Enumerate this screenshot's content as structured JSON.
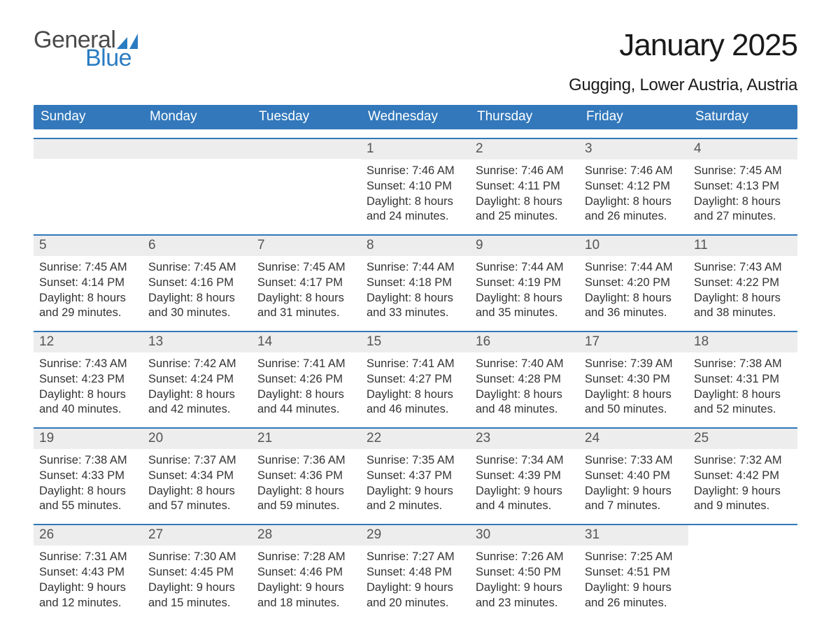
{
  "logo": {
    "general": "General",
    "blue": "Blue",
    "icon_color": "#2a7cc2"
  },
  "title": "January 2025",
  "subtitle": "Gugging, Lower Austria, Austria",
  "colors": {
    "header_bg": "#3278bb",
    "header_text": "#ffffff",
    "daynum_bg": "#ededed",
    "daynum_text": "#555555",
    "body_text": "#333333",
    "row_border": "#3278bb",
    "page_bg": "#ffffff"
  },
  "day_headers": [
    "Sunday",
    "Monday",
    "Tuesday",
    "Wednesday",
    "Thursday",
    "Friday",
    "Saturday"
  ],
  "weeks": [
    [
      {
        "blank": true
      },
      {
        "blank": true
      },
      {
        "blank": true
      },
      {
        "n": "1",
        "sr": "Sunrise: 7:46 AM",
        "ss": "Sunset: 4:10 PM",
        "d1": "Daylight: 8 hours",
        "d2": "and 24 minutes."
      },
      {
        "n": "2",
        "sr": "Sunrise: 7:46 AM",
        "ss": "Sunset: 4:11 PM",
        "d1": "Daylight: 8 hours",
        "d2": "and 25 minutes."
      },
      {
        "n": "3",
        "sr": "Sunrise: 7:46 AM",
        "ss": "Sunset: 4:12 PM",
        "d1": "Daylight: 8 hours",
        "d2": "and 26 minutes."
      },
      {
        "n": "4",
        "sr": "Sunrise: 7:45 AM",
        "ss": "Sunset: 4:13 PM",
        "d1": "Daylight: 8 hours",
        "d2": "and 27 minutes."
      }
    ],
    [
      {
        "n": "5",
        "sr": "Sunrise: 7:45 AM",
        "ss": "Sunset: 4:14 PM",
        "d1": "Daylight: 8 hours",
        "d2": "and 29 minutes."
      },
      {
        "n": "6",
        "sr": "Sunrise: 7:45 AM",
        "ss": "Sunset: 4:16 PM",
        "d1": "Daylight: 8 hours",
        "d2": "and 30 minutes."
      },
      {
        "n": "7",
        "sr": "Sunrise: 7:45 AM",
        "ss": "Sunset: 4:17 PM",
        "d1": "Daylight: 8 hours",
        "d2": "and 31 minutes."
      },
      {
        "n": "8",
        "sr": "Sunrise: 7:44 AM",
        "ss": "Sunset: 4:18 PM",
        "d1": "Daylight: 8 hours",
        "d2": "and 33 minutes."
      },
      {
        "n": "9",
        "sr": "Sunrise: 7:44 AM",
        "ss": "Sunset: 4:19 PM",
        "d1": "Daylight: 8 hours",
        "d2": "and 35 minutes."
      },
      {
        "n": "10",
        "sr": "Sunrise: 7:44 AM",
        "ss": "Sunset: 4:20 PM",
        "d1": "Daylight: 8 hours",
        "d2": "and 36 minutes."
      },
      {
        "n": "11",
        "sr": "Sunrise: 7:43 AM",
        "ss": "Sunset: 4:22 PM",
        "d1": "Daylight: 8 hours",
        "d2": "and 38 minutes."
      }
    ],
    [
      {
        "n": "12",
        "sr": "Sunrise: 7:43 AM",
        "ss": "Sunset: 4:23 PM",
        "d1": "Daylight: 8 hours",
        "d2": "and 40 minutes."
      },
      {
        "n": "13",
        "sr": "Sunrise: 7:42 AM",
        "ss": "Sunset: 4:24 PM",
        "d1": "Daylight: 8 hours",
        "d2": "and 42 minutes."
      },
      {
        "n": "14",
        "sr": "Sunrise: 7:41 AM",
        "ss": "Sunset: 4:26 PM",
        "d1": "Daylight: 8 hours",
        "d2": "and 44 minutes."
      },
      {
        "n": "15",
        "sr": "Sunrise: 7:41 AM",
        "ss": "Sunset: 4:27 PM",
        "d1": "Daylight: 8 hours",
        "d2": "and 46 minutes."
      },
      {
        "n": "16",
        "sr": "Sunrise: 7:40 AM",
        "ss": "Sunset: 4:28 PM",
        "d1": "Daylight: 8 hours",
        "d2": "and 48 minutes."
      },
      {
        "n": "17",
        "sr": "Sunrise: 7:39 AM",
        "ss": "Sunset: 4:30 PM",
        "d1": "Daylight: 8 hours",
        "d2": "and 50 minutes."
      },
      {
        "n": "18",
        "sr": "Sunrise: 7:38 AM",
        "ss": "Sunset: 4:31 PM",
        "d1": "Daylight: 8 hours",
        "d2": "and 52 minutes."
      }
    ],
    [
      {
        "n": "19",
        "sr": "Sunrise: 7:38 AM",
        "ss": "Sunset: 4:33 PM",
        "d1": "Daylight: 8 hours",
        "d2": "and 55 minutes."
      },
      {
        "n": "20",
        "sr": "Sunrise: 7:37 AM",
        "ss": "Sunset: 4:34 PM",
        "d1": "Daylight: 8 hours",
        "d2": "and 57 minutes."
      },
      {
        "n": "21",
        "sr": "Sunrise: 7:36 AM",
        "ss": "Sunset: 4:36 PM",
        "d1": "Daylight: 8 hours",
        "d2": "and 59 minutes."
      },
      {
        "n": "22",
        "sr": "Sunrise: 7:35 AM",
        "ss": "Sunset: 4:37 PM",
        "d1": "Daylight: 9 hours",
        "d2": "and 2 minutes."
      },
      {
        "n": "23",
        "sr": "Sunrise: 7:34 AM",
        "ss": "Sunset: 4:39 PM",
        "d1": "Daylight: 9 hours",
        "d2": "and 4 minutes."
      },
      {
        "n": "24",
        "sr": "Sunrise: 7:33 AM",
        "ss": "Sunset: 4:40 PM",
        "d1": "Daylight: 9 hours",
        "d2": "and 7 minutes."
      },
      {
        "n": "25",
        "sr": "Sunrise: 7:32 AM",
        "ss": "Sunset: 4:42 PM",
        "d1": "Daylight: 9 hours",
        "d2": "and 9 minutes."
      }
    ],
    [
      {
        "n": "26",
        "sr": "Sunrise: 7:31 AM",
        "ss": "Sunset: 4:43 PM",
        "d1": "Daylight: 9 hours",
        "d2": "and 12 minutes."
      },
      {
        "n": "27",
        "sr": "Sunrise: 7:30 AM",
        "ss": "Sunset: 4:45 PM",
        "d1": "Daylight: 9 hours",
        "d2": "and 15 minutes."
      },
      {
        "n": "28",
        "sr": "Sunrise: 7:28 AM",
        "ss": "Sunset: 4:46 PM",
        "d1": "Daylight: 9 hours",
        "d2": "and 18 minutes."
      },
      {
        "n": "29",
        "sr": "Sunrise: 7:27 AM",
        "ss": "Sunset: 4:48 PM",
        "d1": "Daylight: 9 hours",
        "d2": "and 20 minutes."
      },
      {
        "n": "30",
        "sr": "Sunrise: 7:26 AM",
        "ss": "Sunset: 4:50 PM",
        "d1": "Daylight: 9 hours",
        "d2": "and 23 minutes."
      },
      {
        "n": "31",
        "sr": "Sunrise: 7:25 AM",
        "ss": "Sunset: 4:51 PM",
        "d1": "Daylight: 9 hours",
        "d2": "and 26 minutes."
      },
      {
        "blank": true,
        "noStripe": true
      }
    ]
  ]
}
